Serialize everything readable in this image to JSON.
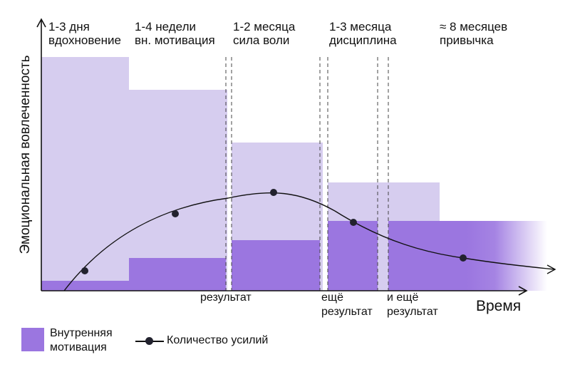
{
  "phases": [
    {
      "title": "1-3 дня",
      "subtitle": "вдохновение"
    },
    {
      "title": "1-4 недели",
      "subtitle": "вн. мотивация"
    },
    {
      "title": "1-2 месяца",
      "subtitle": "сила воли"
    },
    {
      "title": "1-3 месяца",
      "subtitle": "дисциплина"
    },
    {
      "title": "≈ 8 месяцев",
      "subtitle": "привычка"
    }
  ],
  "results": [
    {
      "line1": "результат",
      "line2": ""
    },
    {
      "line1": "ещё",
      "line2": "результат"
    },
    {
      "line1": "и ещё",
      "line2": "результат"
    }
  ],
  "axes": {
    "y_label": "Эмоциональная вовлеченность",
    "x_label": "Время"
  },
  "legend": {
    "internal_motivation_line1": "Внутренняя",
    "internal_motivation_line2": "мотивация",
    "effort": "Количество усилий"
  },
  "colors": {
    "light_purple": "#d6cdef",
    "dark_purple": "#9b76e0",
    "dot": "#22222e",
    "axis": "#111111"
  }
}
